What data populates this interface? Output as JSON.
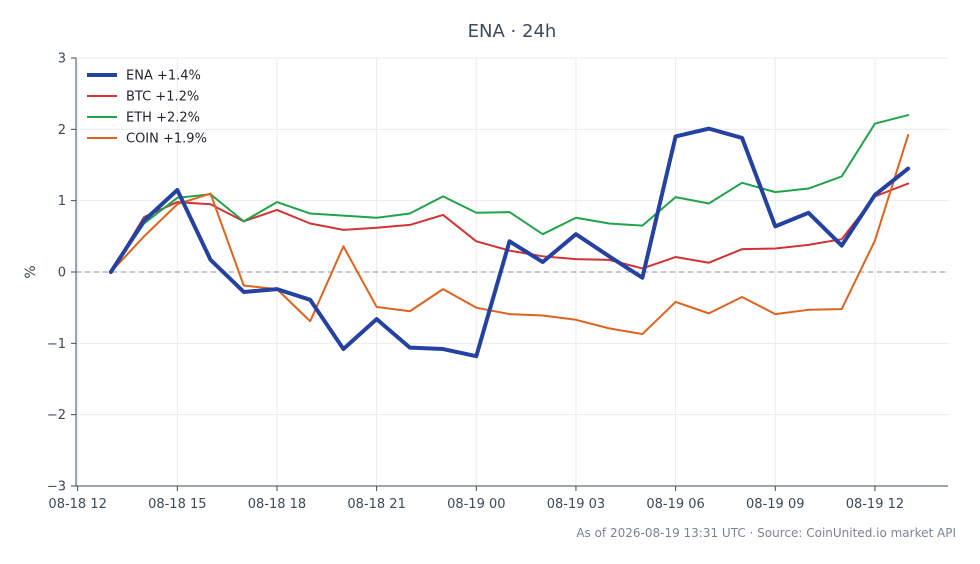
{
  "chart_data": {
    "type": "line",
    "title": "ENA · 24h",
    "xlabel": "",
    "ylabel": "%",
    "ylim": [
      -3,
      3
    ],
    "yticks": [
      "3",
      "2",
      "1",
      "0",
      "−1",
      "−2",
      "−3"
    ],
    "ytick_values": [
      3,
      2,
      1,
      0,
      -1,
      -2,
      -3
    ],
    "xticks": [
      "08-18 12",
      "08-18 15",
      "08-18 18",
      "08-18 21",
      "08-19 00",
      "08-19 03",
      "08-19 06",
      "08-19 09",
      "08-19 12"
    ],
    "xtick_hours": [
      0,
      3,
      6,
      9,
      12,
      15,
      18,
      21,
      24
    ],
    "x_hours_range": [
      -0.05,
      26.2
    ],
    "zero_line": true,
    "grid": true,
    "legend_position": "top-left",
    "x_hours": [
      1,
      2,
      3,
      4,
      5,
      6,
      7,
      8,
      9,
      10,
      11,
      12,
      13,
      14,
      15,
      16,
      17,
      18,
      19,
      20,
      21,
      22,
      23,
      24,
      25
    ],
    "series": [
      {
        "name": "ENA +1.4%",
        "color": "#2541a1",
        "width": 4,
        "values": [
          0.0,
          0.72,
          1.15,
          0.17,
          -0.28,
          -0.24,
          -0.39,
          -1.08,
          -0.66,
          -1.06,
          -1.08,
          -1.18,
          0.43,
          0.14,
          0.53,
          0.22,
          -0.08,
          1.9,
          2.01,
          1.88,
          0.64,
          0.83,
          0.37,
          1.08,
          1.45
        ]
      },
      {
        "name": "BTC +1.2%",
        "color": "#d13434",
        "width": 2,
        "values": [
          0.0,
          0.77,
          0.98,
          0.95,
          0.71,
          0.87,
          0.68,
          0.59,
          0.62,
          0.66,
          0.8,
          0.43,
          0.3,
          0.22,
          0.18,
          0.17,
          0.05,
          0.21,
          0.13,
          0.32,
          0.33,
          0.38,
          0.46,
          1.06,
          1.24
        ]
      },
      {
        "name": "ETH +2.2%",
        "color": "#22a24b",
        "width": 2,
        "values": [
          0.0,
          0.68,
          1.04,
          1.09,
          0.71,
          0.98,
          0.82,
          0.79,
          0.76,
          0.82,
          1.06,
          0.83,
          0.84,
          0.53,
          0.76,
          0.68,
          0.65,
          1.05,
          0.96,
          1.25,
          1.12,
          1.17,
          1.34,
          2.08,
          2.2
        ]
      },
      {
        "name": "COIN +1.9%",
        "color": "#e0621f",
        "width": 2,
        "values": [
          0.0,
          0.5,
          0.95,
          1.1,
          -0.19,
          -0.24,
          -0.69,
          0.36,
          -0.49,
          -0.55,
          -0.24,
          -0.5,
          -0.59,
          -0.61,
          -0.67,
          -0.79,
          -0.87,
          -0.42,
          -0.58,
          -0.35,
          -0.59,
          -0.53,
          -0.52,
          0.44,
          1.92
        ]
      }
    ]
  },
  "footer": {
    "source_text": "As of 2026-08-19 13:31 UTC · Source: CoinUnited.io market API"
  }
}
